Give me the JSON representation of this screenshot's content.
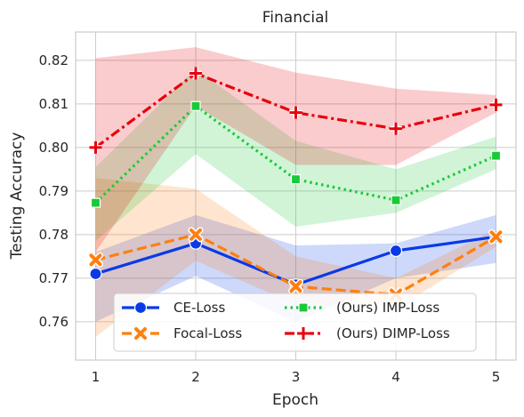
{
  "chart_data": {
    "type": "line",
    "title": "Financial",
    "xlabel": "Epoch",
    "ylabel": "Testing Accuracy",
    "x": [
      1,
      2,
      3,
      4,
      5
    ],
    "xlim": [
      0.8,
      5.2
    ],
    "ylim": [
      0.7512,
      0.8265
    ],
    "xticks": [
      "1",
      "2",
      "3",
      "4",
      "5"
    ],
    "yticks": [
      "0.76",
      "0.77",
      "0.78",
      "0.79",
      "0.80",
      "0.81",
      "0.82"
    ],
    "grid": true,
    "legend_position": "lower-center",
    "series": [
      {
        "name": "CE-Loss",
        "color": "#0a3ae6",
        "marker": "circle",
        "linestyle": "solid",
        "values": [
          0.771,
          0.778,
          0.7685,
          0.7763,
          0.7795
        ],
        "band_low": [
          0.76,
          0.7705,
          0.76,
          0.77,
          0.7735
        ],
        "band_high": [
          0.776,
          0.7845,
          0.7775,
          0.778,
          0.7845
        ]
      },
      {
        "name": "Focal-Loss",
        "color": "#ff7f0e",
        "marker": "x",
        "linestyle": "dashed",
        "values": [
          0.7742,
          0.78,
          0.7681,
          0.7662,
          0.7795
        ],
        "band_low": [
          0.7565,
          0.774,
          0.764,
          0.763,
          0.7772
        ],
        "band_high": [
          0.793,
          0.7905,
          0.775,
          0.77,
          0.7812
        ]
      },
      {
        "name": "(Ours) IMP-Loss",
        "color": "#1ac938",
        "marker": "square",
        "linestyle": "dotted",
        "values": [
          0.7873,
          0.8095,
          0.7927,
          0.7879,
          0.7981
        ],
        "band_low": [
          0.7785,
          0.7985,
          0.7818,
          0.785,
          0.795
        ],
        "band_high": [
          0.7955,
          0.818,
          0.8015,
          0.795,
          0.8025
        ]
      },
      {
        "name": "(Ours) DIMP-Loss",
        "color": "#e8000b",
        "marker": "plus",
        "linestyle": "dashdot",
        "values": [
          0.8,
          0.817,
          0.808,
          0.8043,
          0.8098
        ],
        "band_low": [
          0.776,
          0.8095,
          0.796,
          0.796,
          0.808
        ],
        "band_high": [
          0.8205,
          0.823,
          0.8172,
          0.8135,
          0.812
        ]
      }
    ]
  }
}
